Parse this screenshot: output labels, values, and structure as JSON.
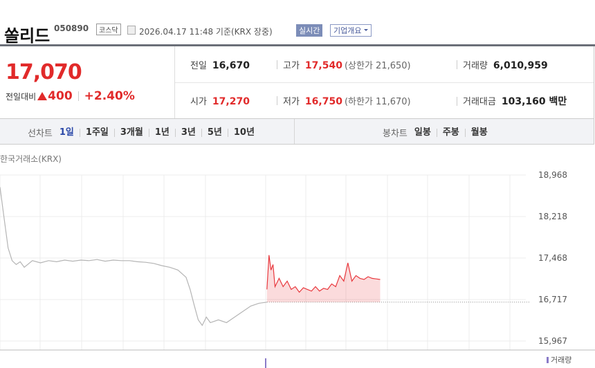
{
  "header": {
    "name": "쏠리드",
    "code": "050890",
    "market": "코스닥",
    "timestamp": "2026.04.17 11:48 기준(KRX 장중)",
    "buttons": [
      "실시간",
      "기업개요"
    ]
  },
  "quote": {
    "price": "17,070",
    "change_label": "전일대비",
    "change": "400",
    "change_rate": "+2.40%"
  },
  "stats": [
    {
      "label": "전일",
      "value": "16,670"
    },
    {
      "label": "고가",
      "value": "17,540",
      "sub": "(상한가 21,650)"
    },
    {
      "label": "거래량",
      "value": "6,010,959"
    },
    {
      "label": "시가",
      "value": "17,270"
    },
    {
      "label": "저가",
      "value": "16,750",
      "sub": "(하한가 11,670)"
    },
    {
      "label": "거래대금",
      "value": "103,160 백만"
    }
  ],
  "tabs": {
    "line_label": "선차트",
    "line": [
      "1일",
      "1주일",
      "3개월",
      "1년",
      "3년",
      "5년",
      "10년"
    ],
    "candle_label": "봉차트",
    "candle": [
      "일봉",
      "주봉",
      "월봉"
    ]
  },
  "chart_data": {
    "type": "line",
    "source": "한국거래소(KRX)",
    "volume_label": "거래량",
    "xlim": [
      0,
      130
    ],
    "ylim": [
      15967,
      18968
    ],
    "yticks": [
      {
        "value": 18968,
        "label": "18,968"
      },
      {
        "value": 18218,
        "label": "18,218"
      },
      {
        "value": 17468,
        "label": "17,468"
      },
      {
        "value": 16717,
        "label": "16,717"
      },
      {
        "value": 15967,
        "label": "15,967"
      }
    ],
    "reference": 16670,
    "grid": true,
    "series": [
      {
        "color": "#b4b4b4",
        "x": [
          0,
          1,
          2,
          3,
          4,
          5,
          6,
          8,
          10,
          12,
          14,
          16,
          18,
          20,
          22,
          24,
          26,
          28,
          30,
          32,
          34,
          36,
          38,
          40,
          42,
          44,
          46,
          47,
          48,
          49,
          50,
          51,
          52,
          54,
          56,
          58,
          60,
          62,
          64,
          66
        ],
        "values": [
          18750,
          18200,
          17650,
          17420,
          17350,
          17400,
          17300,
          17420,
          17380,
          17420,
          17400,
          17430,
          17410,
          17430,
          17420,
          17440,
          17410,
          17430,
          17420,
          17420,
          17400,
          17390,
          17370,
          17330,
          17300,
          17250,
          17120,
          16900,
          16620,
          16350,
          16250,
          16400,
          16300,
          16350,
          16300,
          16400,
          16500,
          16600,
          16650,
          16670
        ]
      },
      {
        "color": "#e8383d",
        "x": [
          66,
          66.5,
          67,
          67.5,
          68,
          69,
          70,
          71,
          72,
          73,
          74,
          75,
          76,
          77,
          78,
          79,
          80,
          81,
          82,
          83,
          84,
          85,
          86,
          87,
          88,
          89,
          90,
          91,
          92,
          93,
          94
        ],
        "values": [
          16900,
          17520,
          17250,
          17350,
          16950,
          17100,
          16950,
          17050,
          16900,
          16950,
          16850,
          16930,
          16900,
          16870,
          16950,
          16870,
          16920,
          16900,
          17000,
          16950,
          17150,
          17050,
          17380,
          17050,
          17150,
          17100,
          17080,
          17130,
          17100,
          17090,
          17080
        ]
      }
    ]
  }
}
